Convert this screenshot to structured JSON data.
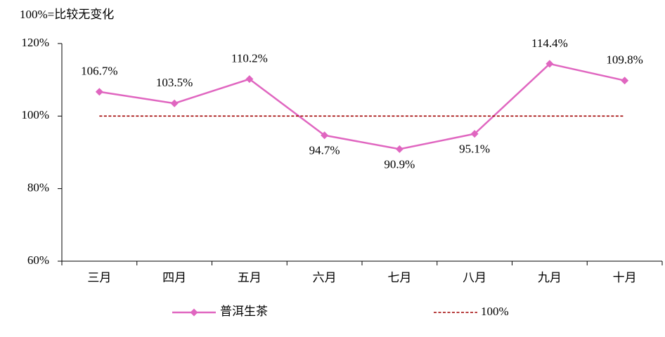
{
  "chart_data": {
    "type": "line",
    "annotation": "100%=比较无变化",
    "categories": [
      "三月",
      "四月",
      "五月",
      "六月",
      "七月",
      "八月",
      "九月",
      "十月"
    ],
    "series": [
      {
        "name": "普洱生茶",
        "color": "#e066c0",
        "marker": "diamond",
        "values": [
          106.7,
          103.5,
          110.2,
          94.7,
          90.9,
          95.1,
          114.4,
          109.8
        ],
        "value_labels": [
          "106.7%",
          "103.5%",
          "110.2%",
          "94.7%",
          "90.9%",
          "95.1%",
          "114.4%",
          "109.8%"
        ]
      },
      {
        "name": "100%",
        "color": "#a00000",
        "dashed": true,
        "values": [
          100,
          100,
          100,
          100,
          100,
          100,
          100,
          100
        ]
      }
    ],
    "ylim": [
      60,
      120
    ],
    "yticks": [
      {
        "value": 60,
        "label": "60%"
      },
      {
        "value": 80,
        "label": "80%"
      },
      {
        "value": 100,
        "label": "100%"
      },
      {
        "value": 120,
        "label": "120%"
      }
    ],
    "grid": false
  }
}
